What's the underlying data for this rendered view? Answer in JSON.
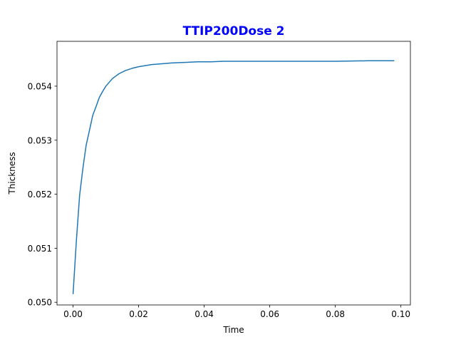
{
  "chart_data": {
    "type": "line",
    "title": "TTIP200Dose 2",
    "xlabel": "Time",
    "ylabel": "Thickness",
    "xlim": [
      -0.0049,
      0.1029
    ],
    "ylim": [
      0.04995,
      0.05483
    ],
    "xticks": [
      0.0,
      0.02,
      0.04,
      0.06,
      0.08,
      0.1
    ],
    "xtick_labels": [
      "0.00",
      "0.02",
      "0.04",
      "0.06",
      "0.08",
      "0.10"
    ],
    "yticks": [
      0.05,
      0.051,
      0.052,
      0.053,
      0.054
    ],
    "ytick_labels": [
      "0.050",
      "0.051",
      "0.052",
      "0.053",
      "0.054"
    ],
    "grid": false,
    "series": [
      {
        "color": "#1f77b4",
        "x": [
          0.0,
          0.001,
          0.002,
          0.003,
          0.004,
          0.005,
          0.006,
          0.007,
          0.008,
          0.009,
          0.01,
          0.012,
          0.014,
          0.016,
          0.018,
          0.02,
          0.022,
          0.024,
          0.026,
          0.028,
          0.03,
          0.034,
          0.038,
          0.042,
          0.046,
          0.05,
          0.06,
          0.07,
          0.08,
          0.09,
          0.098
        ],
        "y": [
          0.05015,
          0.05113,
          0.05198,
          0.05248,
          0.05291,
          0.05318,
          0.05346,
          0.05362,
          0.05379,
          0.0539,
          0.054,
          0.05414,
          0.05423,
          0.05429,
          0.05433,
          0.05436,
          0.05438,
          0.0544,
          0.05441,
          0.05442,
          0.05443,
          0.05444,
          0.05445,
          0.05445,
          0.05446,
          0.05446,
          0.05446,
          0.05446,
          0.05446,
          0.05447,
          0.05447
        ]
      }
    ]
  },
  "colors": {
    "title": "#0000ff",
    "line": "#1f77b4",
    "axes": "#000000",
    "background": "#ffffff"
  }
}
